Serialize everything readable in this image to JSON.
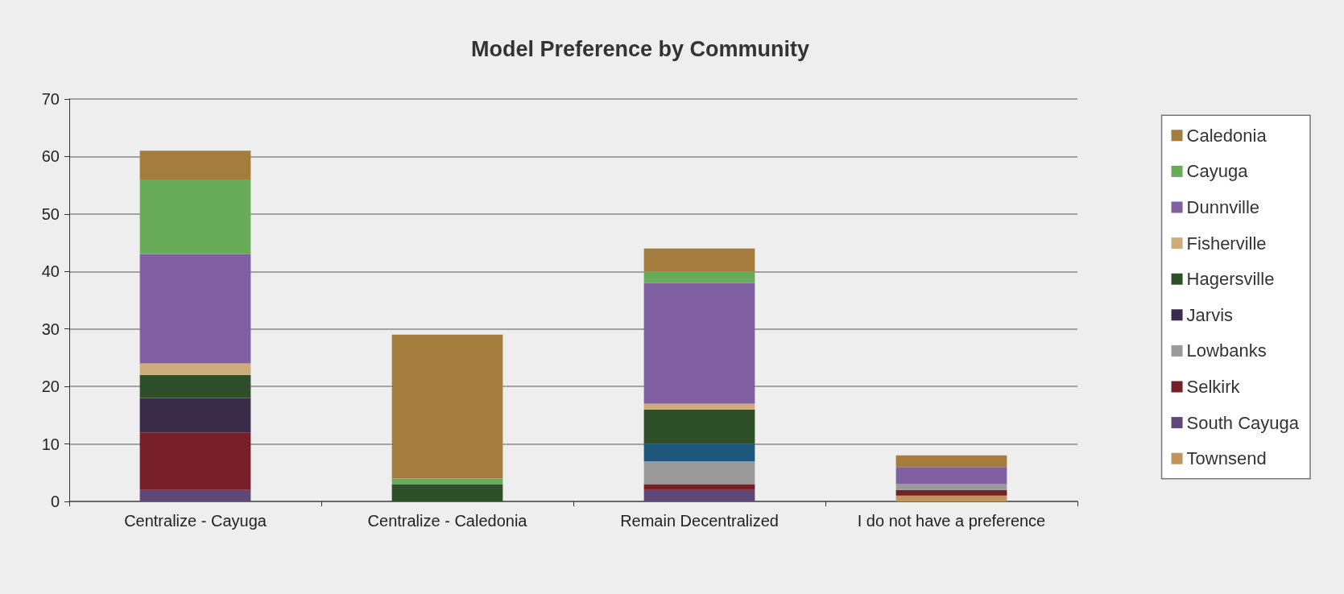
{
  "chart_data": {
    "type": "bar",
    "title": "Model Preference by Community",
    "stacked": true,
    "grid": "y",
    "legend": "right",
    "categories": [
      "Centralize - Cayuga",
      "Centralize - Caledonia",
      "Remain Decentralized",
      "I do not have a preference"
    ],
    "ylim": [
      0,
      70
    ],
    "yticks": [
      0,
      10,
      20,
      30,
      40,
      50,
      60,
      70
    ],
    "series": [
      {
        "name": "Townsend",
        "color": "#c0945a",
        "values": [
          0,
          0,
          0,
          1
        ]
      },
      {
        "name": "South Cayuga",
        "color": "#5f4878",
        "values": [
          2,
          0,
          2,
          0
        ]
      },
      {
        "name": "Selkirk",
        "color": "#761f28",
        "values": [
          10,
          0,
          1,
          1
        ]
      },
      {
        "name": "Lowbanks",
        "color": "#9a9a9a",
        "values": [
          0,
          0,
          4,
          1
        ]
      },
      {
        "color": "#1d577b",
        "values": [
          0,
          0,
          3,
          0
        ]
      },
      {
        "name": "Jarvis",
        "color": "#3a2b48",
        "values": [
          6,
          0,
          0,
          0
        ]
      },
      {
        "name": "Hagersville",
        "color": "#2f4f2b",
        "values": [
          4,
          3,
          6,
          0
        ]
      },
      {
        "name": "Fisherville",
        "color": "#ccac7a",
        "values": [
          2,
          0,
          1,
          0
        ]
      },
      {
        "name": "Dunnville",
        "color": "#8060a0",
        "values": [
          19,
          0,
          21,
          3
        ]
      },
      {
        "name": "Cayuga",
        "color": "#68ac5a",
        "values": [
          13,
          1,
          2,
          0
        ]
      },
      {
        "name": "Caledonia",
        "color": "#a37c3e",
        "values": [
          5,
          25,
          4,
          2
        ]
      }
    ]
  }
}
